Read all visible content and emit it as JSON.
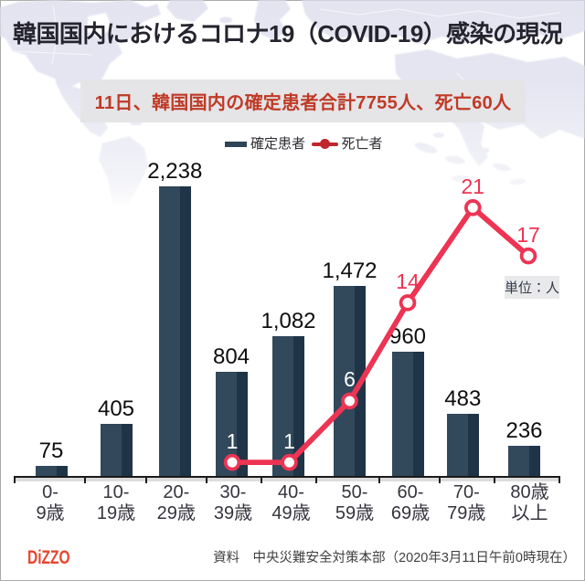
{
  "header": {
    "title": "韓国国内におけるコロナ19（COVID-19）感染の現況"
  },
  "banner": {
    "text": "11日、韓国国内の確定患者合計7755人、死亡60人"
  },
  "legend": {
    "confirmed": "確定患者",
    "deaths": "死亡者"
  },
  "chart": {
    "unit_label": "単位：人"
  },
  "chart_data": {
    "type": "combo",
    "categories": [
      "0-9歳",
      "10-19歳",
      "20-29歳",
      "30-39歳",
      "40-49歳",
      "50-59歳",
      "60-69歳",
      "70-79歳",
      "80歳以上"
    ],
    "category_label_lines": [
      [
        "0-",
        "9歳"
      ],
      [
        "10-",
        "19歳"
      ],
      [
        "20-",
        "29歳"
      ],
      [
        "30-",
        "39歳"
      ],
      [
        "40-",
        "49歳"
      ],
      [
        "50-",
        "59歳"
      ],
      [
        "60-",
        "69歳"
      ],
      [
        "70-",
        "79歳"
      ],
      [
        "80歳",
        "以上"
      ]
    ],
    "series": [
      {
        "name": "確定患者",
        "type": "bar",
        "color": "#32485b",
        "values": [
          75,
          405,
          2238,
          804,
          1082,
          1472,
          960,
          483,
          236
        ]
      },
      {
        "name": "死亡者",
        "type": "line",
        "color": "#ed3453",
        "values": [
          null,
          null,
          null,
          1,
          1,
          6,
          14,
          21,
          17
        ]
      }
    ],
    "title": "韓国国内におけるコロナ19（COVID-19）感染の現況",
    "subtitle": "11日、韓国国内の確定患者合計7755人、死亡60人",
    "unit": "単位：人",
    "xlabel": "",
    "ylabel": "",
    "legend_position": "top",
    "grid": false
  },
  "footer": {
    "logo": "DIZZO",
    "source": "資料　中央災難安全対策本部（2020年3月11日午前0時現在）"
  },
  "colors": {
    "bar": "#32485b",
    "bar_shade": "#203448",
    "line": "#ed3453",
    "legend_marker_red": "#c2252d",
    "banner_text": "#bf3a26",
    "banner_bg": "#e5e4e7",
    "title_text": "#25242e",
    "logo_red": "#e8462f",
    "map_land": "#e2e3f0"
  }
}
